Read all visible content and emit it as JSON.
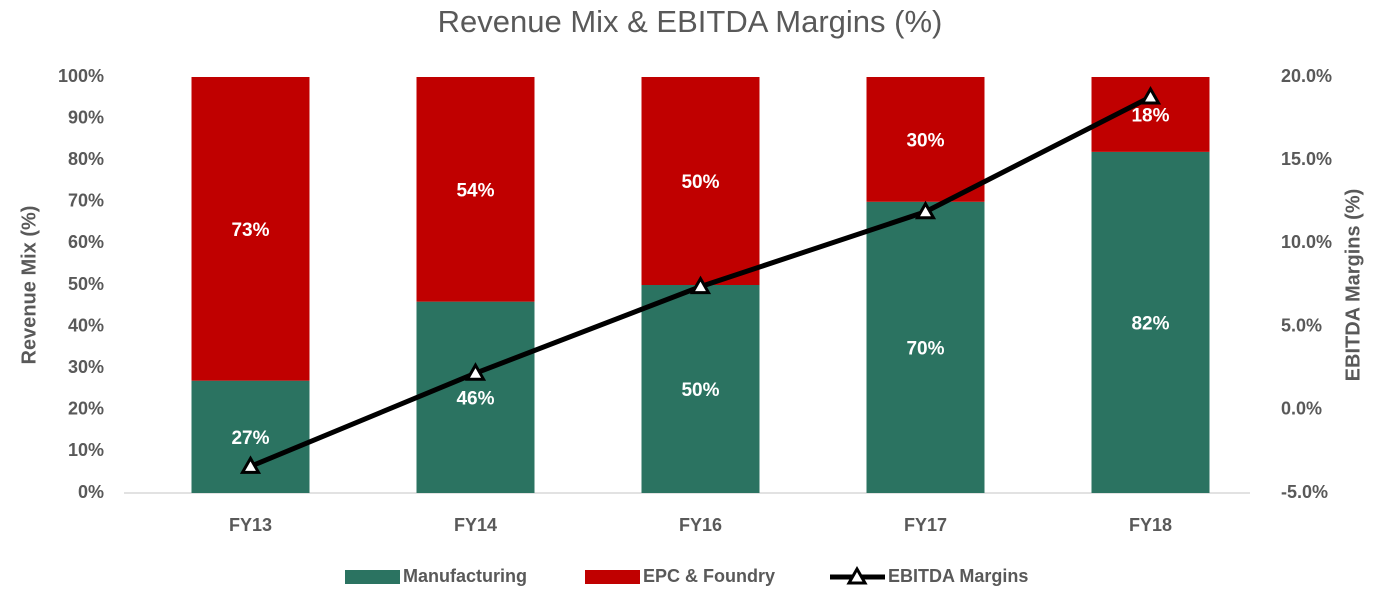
{
  "chart_data": {
    "type": "bar",
    "stacked": true,
    "title": "Revenue Mix & EBITDA Margins (%)",
    "y_label": "Revenue Mix (%)",
    "y2_label": "EBITDA Margins (%)",
    "categories": [
      "FY13",
      "FY14",
      "FY16",
      "FY17",
      "FY18"
    ],
    "series": [
      {
        "name": "Manufacturing",
        "color": "#2b7361",
        "values": [
          27,
          46,
          50,
          70,
          82
        ],
        "value_labels": [
          "27%",
          "46%",
          "50%",
          "70%",
          "82%"
        ]
      },
      {
        "name": "EPC & Foundry",
        "color": "#c00000",
        "values": [
          73,
          54,
          50,
          30,
          18
        ],
        "value_labels": [
          "73%",
          "54%",
          "50%",
          "30%",
          "18%"
        ]
      },
      {
        "name": "EBITDA Margins",
        "type": "line",
        "axis": "y2",
        "color": "#000000",
        "marker": "triangle",
        "values": [
          -3.4,
          2.2,
          7.4,
          11.9,
          18.8
        ]
      }
    ],
    "ylim": [
      0,
      100
    ],
    "yticks": [
      {
        "value": 0,
        "label": "0%"
      },
      {
        "value": 10,
        "label": "10%"
      },
      {
        "value": 20,
        "label": "20%"
      },
      {
        "value": 30,
        "label": "30%"
      },
      {
        "value": 40,
        "label": "40%"
      },
      {
        "value": 50,
        "label": "50%"
      },
      {
        "value": 60,
        "label": "60%"
      },
      {
        "value": 70,
        "label": "70%"
      },
      {
        "value": 80,
        "label": "80%"
      },
      {
        "value": 90,
        "label": "90%"
      },
      {
        "value": 100,
        "label": "100%"
      }
    ],
    "y2lim": [
      -5,
      20
    ],
    "y2ticks": [
      {
        "value": -5,
        "label": "-5.0%"
      },
      {
        "value": 0,
        "label": "0.0%"
      },
      {
        "value": 5,
        "label": "5.0%"
      },
      {
        "value": 10,
        "label": "10.0%"
      },
      {
        "value": 15,
        "label": "15.0%"
      },
      {
        "value": 20,
        "label": "20.0%"
      }
    ],
    "grid": false,
    "legend": "bottom"
  }
}
